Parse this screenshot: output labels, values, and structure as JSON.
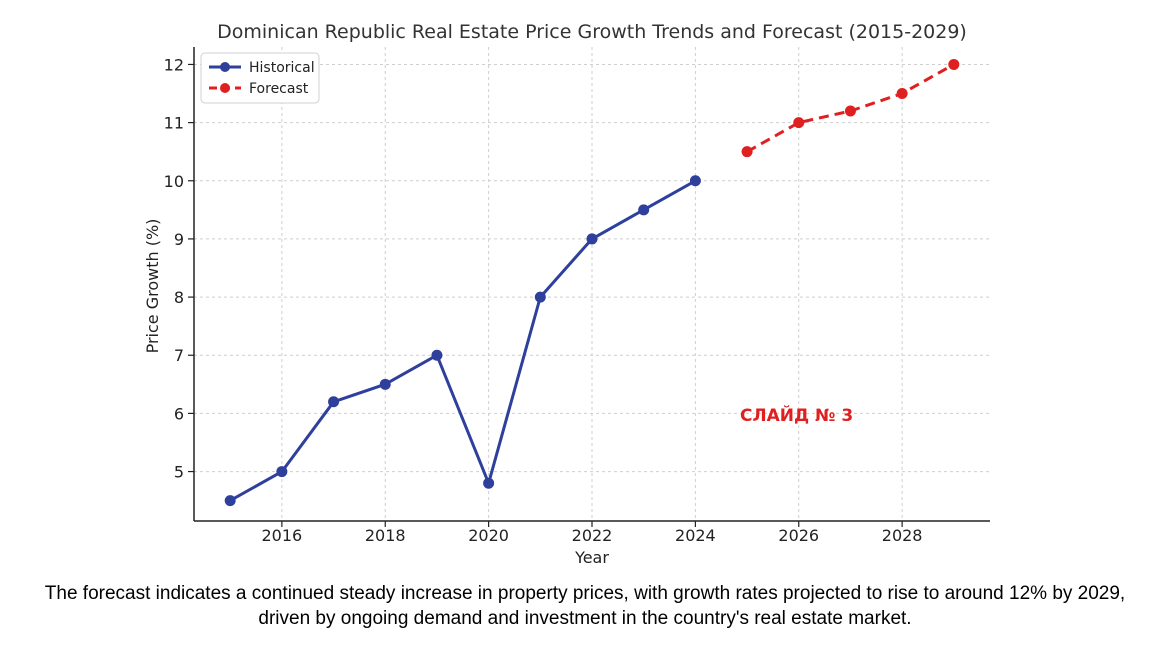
{
  "chart_data": {
    "type": "line",
    "title": "Dominican Republic Real Estate Price Growth Trends and Forecast (2015-2029)",
    "xlabel": "Year",
    "ylabel": "Price Growth (%)",
    "xlim": [
      2014.3,
      2029.7
    ],
    "ylim": [
      4.15,
      12.3
    ],
    "xticks": [
      2016,
      2018,
      2020,
      2022,
      2024,
      2026,
      2028
    ],
    "yticks": [
      5,
      6,
      7,
      8,
      9,
      10,
      11,
      12
    ],
    "grid": true,
    "legend_position": "top-left",
    "series": [
      {
        "name": "Historical",
        "color": "#2e3f9c",
        "style": "solid",
        "x": [
          2015,
          2016,
          2017,
          2018,
          2019,
          2020,
          2021,
          2022,
          2023,
          2024
        ],
        "y": [
          4.5,
          5.0,
          6.2,
          6.5,
          7.0,
          4.8,
          8.0,
          9.0,
          9.5,
          10.0
        ]
      },
      {
        "name": "Forecast",
        "color": "#e02020",
        "style": "dashed",
        "x": [
          2025,
          2026,
          2027,
          2028,
          2029
        ],
        "y": [
          10.5,
          11.0,
          11.2,
          11.5,
          12.0
        ]
      }
    ],
    "annotation": "СЛАЙД № 3"
  },
  "caption": "The forecast indicates a continued steady increase in property prices, with growth rates projected to rise to around 12% by 2029, driven by ongoing demand and investment in the country's real estate market."
}
